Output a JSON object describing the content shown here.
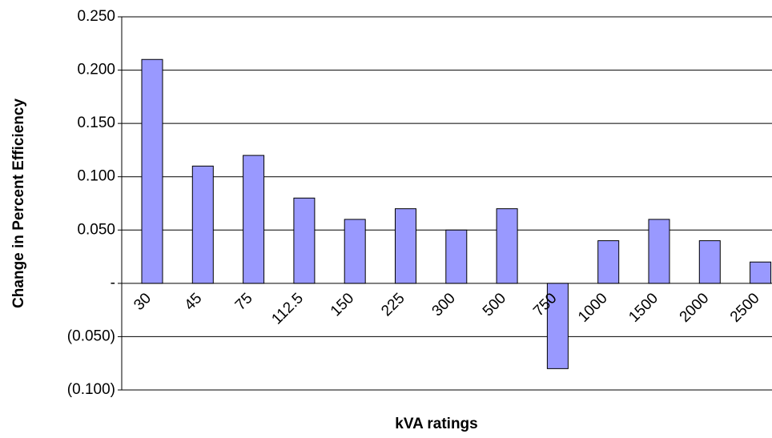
{
  "chart_data": {
    "type": "bar",
    "x_label": "kVA ratings",
    "y_label": "Change in Percent Efficiency",
    "categories": [
      "30",
      "45",
      "75",
      "112.5",
      "150",
      "225",
      "300",
      "500",
      "750",
      "1000",
      "1500",
      "2000",
      "2500"
    ],
    "values": [
      0.21,
      0.11,
      0.12,
      0.08,
      0.06,
      0.07,
      0.05,
      0.07,
      -0.08,
      0.04,
      0.06,
      0.04,
      0.02
    ],
    "color": "#9999ff",
    "ylim": [
      -0.1,
      0.25
    ],
    "yticks": [
      {
        "value": -0.1,
        "label": "(0.100)"
      },
      {
        "value": -0.05,
        "label": "(0.050)"
      },
      {
        "value": 0,
        "label": "-"
      },
      {
        "value": 0.05,
        "label": "0.050"
      },
      {
        "value": 0.1,
        "label": "0.100"
      },
      {
        "value": 0.15,
        "label": "0.150"
      },
      {
        "value": 0.2,
        "label": "0.200"
      },
      {
        "value": 0.25,
        "label": "0.250"
      }
    ],
    "grid": true
  }
}
